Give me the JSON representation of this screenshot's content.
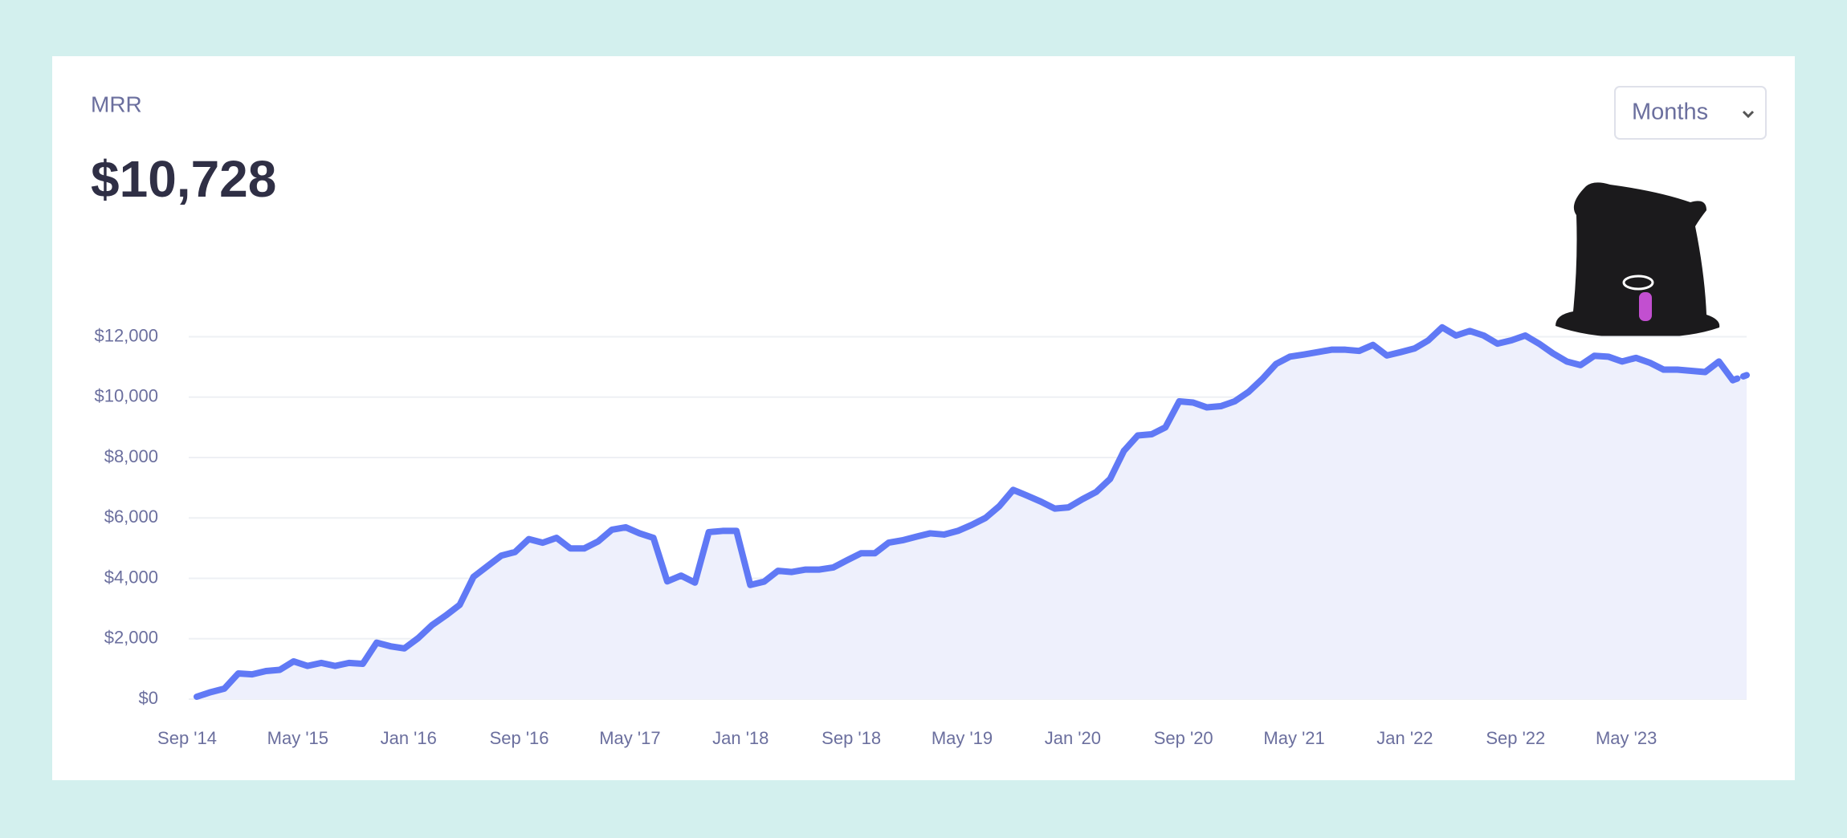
{
  "title": "MRR",
  "headline": "$10,728",
  "period_select": "Months",
  "chart_data": {
    "type": "area",
    "categories": [
      "Sep '14",
      null,
      null,
      null,
      null,
      null,
      null,
      null,
      "May '15",
      null,
      null,
      null,
      null,
      null,
      null,
      null,
      "Jan '16",
      null,
      null,
      null,
      null,
      null,
      null,
      null,
      "Sep '16",
      null,
      null,
      null,
      null,
      null,
      null,
      null,
      "May '17",
      null,
      null,
      null,
      null,
      null,
      null,
      null,
      "Jan '18",
      null,
      null,
      null,
      null,
      null,
      null,
      null,
      "Sep '18",
      null,
      null,
      null,
      null,
      null,
      null,
      null,
      "May '19",
      null,
      null,
      null,
      null,
      null,
      null,
      null,
      "Jan '20",
      null,
      null,
      null,
      null,
      null,
      null,
      null,
      "Sep '20",
      null,
      null,
      null,
      null,
      null,
      null,
      null,
      "May '21",
      null,
      null,
      null,
      null,
      null,
      null,
      null,
      "Jan '22",
      null,
      null,
      null,
      null,
      null,
      null,
      null,
      "Sep '22",
      null,
      null,
      null,
      null,
      null,
      null,
      null,
      "May '23",
      null,
      null,
      null,
      null,
      null,
      null,
      null,
      null
    ],
    "values": [
      80,
      230,
      350,
      850,
      820,
      930,
      970,
      1250,
      1100,
      1200,
      1100,
      1200,
      1170,
      1870,
      1750,
      1680,
      2020,
      2450,
      2770,
      3120,
      4050,
      4400,
      4750,
      4870,
      5300,
      5180,
      5340,
      4990,
      4990,
      5220,
      5610,
      5690,
      5490,
      5340,
      3900,
      4090,
      3860,
      5530,
      5570,
      5570,
      3780,
      3890,
      4250,
      4210,
      4290,
      4290,
      4360,
      4600,
      4830,
      4830,
      5180,
      5260,
      5380,
      5490,
      5450,
      5570,
      5770,
      6000,
      6390,
      6930,
      6740,
      6540,
      6310,
      6350,
      6620,
      6860,
      7290,
      8220,
      8730,
      8770,
      9000,
      9860,
      9820,
      9660,
      9700,
      9860,
      10170,
      10600,
      11100,
      11340,
      11410,
      11490,
      11570,
      11570,
      11530,
      11730,
      11380,
      11490,
      11610,
      11880,
      12310,
      12040,
      12190,
      12040,
      11770,
      11880,
      12040,
      11770,
      11450,
      11180,
      11060,
      11370,
      11340,
      11180,
      11300,
      11140,
      10910,
      10910,
      10870,
      10830,
      11180,
      10560,
      10728
    ],
    "color": "#6079f5",
    "fill": "#eef0fc",
    "ylim": [
      0,
      12000
    ],
    "yticks": [
      {
        "value": 0,
        "label": "$0"
      },
      {
        "value": 2000,
        "label": "$2,000"
      },
      {
        "value": 4000,
        "label": "$4,000"
      },
      {
        "value": 6000,
        "label": "$6,000"
      },
      {
        "value": 8000,
        "label": "$8,000"
      },
      {
        "value": 10000,
        "label": "$10,000"
      },
      {
        "value": 12000,
        "label": "$12,000"
      }
    ],
    "grid": true
  }
}
